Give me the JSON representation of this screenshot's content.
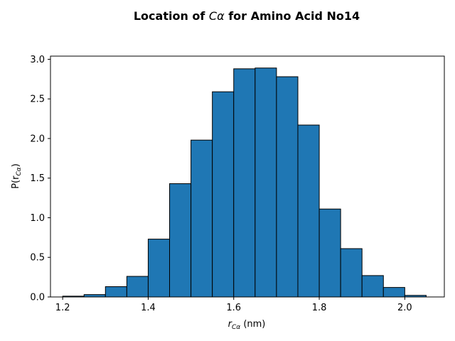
{
  "chart_data": {
    "type": "bar",
    "title_pre": "Location of ",
    "title_sym_main": "C",
    "title_sym_sub": "α",
    "title_post": " for Amino Acid No14",
    "xlabel_main": "r",
    "xlabel_sub": "Cα",
    "xlabel_post": " (nm)",
    "ylabel_pre": "P(r",
    "ylabel_sub": "Cα",
    "ylabel_post": ")",
    "xlim": [
      1.1715,
      2.0925
    ],
    "ylim": [
      0,
      3.04
    ],
    "x_ticks": [
      "1.2",
      "1.4",
      "1.6",
      "1.8",
      "2.0"
    ],
    "y_ticks": [
      "0.0",
      "0.5",
      "1.0",
      "1.5",
      "2.0",
      "2.5",
      "3.0"
    ],
    "bin_width": 0.05,
    "bins": [
      1.2,
      1.25,
      1.3,
      1.35,
      1.4,
      1.45,
      1.5,
      1.55,
      1.6,
      1.65,
      1.7,
      1.75,
      1.8,
      1.85,
      1.9,
      1.95,
      2.0
    ],
    "values": [
      0.01,
      0.03,
      0.13,
      0.26,
      0.73,
      1.43,
      1.98,
      2.59,
      2.88,
      2.89,
      2.78,
      2.17,
      1.11,
      0.61,
      0.27,
      0.12,
      0.02
    ],
    "bar_color": "#1f77b4",
    "edge_color": "#000000"
  }
}
